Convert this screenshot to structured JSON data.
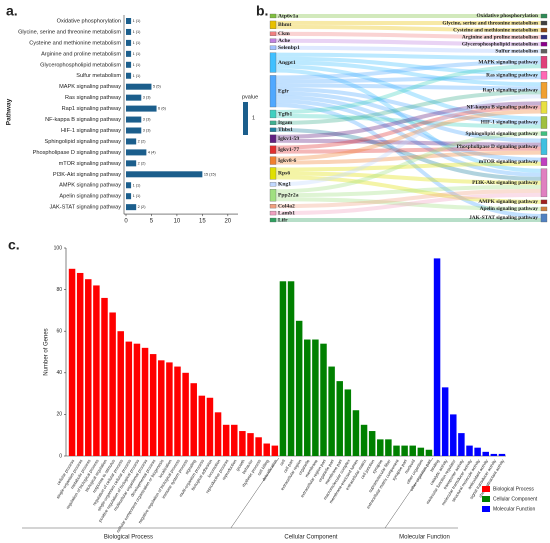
{
  "chart_data": [
    {
      "type": "barh",
      "label": "a.",
      "ylabel": "Pathway",
      "categories": [
        "Oxidative phosphorylation",
        "Glycine, serine and threonine metabolism",
        "Cysteine and methionine metabolism",
        "Arginine and proline metabolism",
        "Glycerophospholipid metabolism",
        "Sulfur metabolism",
        "MAPK signaling pathway",
        "Ras signaling pathway",
        "Rap1 signaling pathway",
        "NF-kappa B signaling pathway",
        "HIF-1 signaling pathway",
        "Sphingolipid signaling pathway",
        "Phospholipase D signaling pathway",
        "mTOR signaling pathway",
        "PI3K-Akt signaling pathway",
        "AMPK signaling pathway",
        "Apelin signaling pathway",
        "JAK-STAT signaling pathway"
      ],
      "values": [
        1,
        1,
        1,
        1,
        1,
        1,
        5,
        3,
        6,
        3,
        3,
        2,
        4,
        2,
        15,
        1,
        1,
        2
      ],
      "value_labels": [
        "1 (1)",
        "1 (1)",
        "1 (1)",
        "1 (1)",
        "1 (1)",
        "1 (1)",
        "5 (5)",
        "3 (3)",
        "6 (6)",
        "3 (3)",
        "3 (3)",
        "2 (2)",
        "4 (4)",
        "2 (2)",
        "15 (15)",
        "1 (1)",
        "1 (1)",
        "2 (2)"
      ],
      "color": "#1b5e8c",
      "xlim": [
        0,
        22
      ],
      "xticks": [
        0,
        5,
        10,
        15,
        20
      ],
      "colorbar": {
        "title": "pvalue",
        "ticks": [
          1
        ],
        "color": "#1b5e8c"
      }
    },
    {
      "type": "bar",
      "label": "c.",
      "ylabel": "Number of Genes",
      "ylim": [
        0,
        100
      ],
      "yticks": [
        0,
        20,
        40,
        60,
        80,
        100
      ],
      "legend": "lower right",
      "groups": [
        {
          "name": "Biological Process",
          "color": "#ff0000",
          "categories": [
            "cellular process",
            "single-organism process",
            "metabolic process",
            "regulation of biological process",
            "biological regulation",
            "response to stimulus",
            "regulation of cellular process",
            "single-organism cellular process",
            "positive regulation of biological process",
            "multicellular organismal process",
            "developmental process",
            "cellular component organization or biogenesis",
            "localization",
            "negative regulation of biological process",
            "immune system process",
            "signaling",
            "multi-organism process",
            "biological adhesion",
            "locomotion",
            "reproductive process",
            "reproduction",
            "growth",
            "behavior",
            "rhythmic process",
            "cell killing",
            "detoxification"
          ],
          "values": [
            90,
            88,
            85,
            82,
            76,
            69,
            60,
            55,
            54,
            52,
            49,
            46,
            45,
            43,
            40,
            35,
            29,
            28,
            21,
            15,
            15,
            12,
            11,
            9,
            6,
            5
          ]
        },
        {
          "name": "Cellular Component",
          "color": "#008000",
          "categories": [
            "cell",
            "cell part",
            "extracellular region",
            "organelle",
            "membrane",
            "extracellular region part",
            "organelle part",
            "membrane part",
            "macromolecular complex",
            "membrane-enclosed lumen",
            "extracellular matrix",
            "cell junction",
            "synapse",
            "supramolecular fiber",
            "extracellular matrix component",
            "synapse part",
            "nucleoid",
            "other organism",
            "other organism part"
          ],
          "values": [
            84,
            84,
            65,
            56,
            56,
            54,
            43,
            36,
            32,
            22,
            15,
            12,
            8,
            8,
            5,
            5,
            5,
            4,
            3
          ]
        },
        {
          "name": "Molecular Function",
          "color": "#0000ff",
          "categories": [
            "binding",
            "catalytic activity",
            "molecular function regulator",
            "transporter activity",
            "molecular transducer activity",
            "structural molecule activity",
            "antioxidant activity",
            "signal transducer activity",
            "chemoattractant activity"
          ],
          "values": [
            95,
            33,
            20,
            11,
            5,
            4,
            2,
            1,
            1
          ]
        }
      ]
    }
  ],
  "sankey": {
    "label": "b.",
    "genes": [
      {
        "name": "Atp6v1a",
        "color": "#7fbf3f",
        "pathways": [
          "Oxidative phosphorylation"
        ]
      },
      {
        "name": "Bhmt",
        "color": "#e8c000",
        "pathways": [
          "Glycine, serine and threonine metabolism",
          "Cysteine and methionine metabolism"
        ]
      },
      {
        "name": "Ckm",
        "color": "#f08080",
        "pathways": [
          "Arginine and proline metabolism"
        ]
      },
      {
        "name": "Ache",
        "color": "#c080e0",
        "pathways": [
          "Glycerophospholipid metabolism"
        ]
      },
      {
        "name": "Selenbp1",
        "color": "#a0c0ff",
        "pathways": [
          "Sulfur metabolism"
        ]
      },
      {
        "name": "Angpt1",
        "color": "#40c0ff",
        "pathways": [
          "MAPK signaling pathway",
          "Ras signaling pathway",
          "Rap1 signaling pathway",
          "HIF-1 signaling pathway",
          "PI3K-Akt signaling pathway"
        ]
      },
      {
        "name": "Egfr",
        "color": "#4fa8ff",
        "pathways": [
          "MAPK signaling pathway",
          "Ras signaling pathway",
          "Rap1 signaling pathway",
          "HIF-1 signaling pathway",
          "Phospholipase D signaling pathway",
          "mTOR signaling pathway",
          "PI3K-Akt signaling pathway",
          "JAK-STAT signaling pathway"
        ]
      },
      {
        "name": "Tgfb1",
        "color": "#40d0c0",
        "pathways": [
          "MAPK signaling pathway",
          "HIF-1 signaling pathway"
        ]
      },
      {
        "name": "Itgam",
        "color": "#40b090",
        "pathways": [
          "Rap1 signaling pathway"
        ]
      },
      {
        "name": "Thbs1",
        "color": "#2080a0",
        "pathways": [
          "PI3K-Akt signaling pathway"
        ]
      },
      {
        "name": "Igkv1-59",
        "color": "#602080",
        "pathways": [
          "NF-kappa B signaling pathway",
          "Phospholipase D signaling pathway"
        ]
      },
      {
        "name": "Igkv1-77",
        "color": "#e03030",
        "pathways": [
          "NF-kappa B signaling pathway",
          "Phospholipase D signaling pathway"
        ]
      },
      {
        "name": "Igkv8-6",
        "color": "#f08030",
        "pathways": [
          "NF-kappa B signaling pathway",
          "Phospholipase D signaling pathway"
        ]
      },
      {
        "name": "Rps6",
        "color": "#e0e000",
        "pathways": [
          "mTOR signaling pathway",
          "PI3K-Akt signaling pathway",
          "AMPK signaling pathway"
        ]
      },
      {
        "name": "Kng1",
        "color": "#c0d8ff",
        "pathways": [
          "Rap1 signaling pathway"
        ]
      },
      {
        "name": "Ppp2r2a",
        "color": "#a0e080",
        "pathways": [
          "Sphingolipid signaling pathway",
          "PI3K-Akt signaling pathway",
          "Apelin signaling pathway"
        ]
      },
      {
        "name": "Col4a2",
        "color": "#f0a080",
        "pathways": [
          "PI3K-Akt signaling pathway"
        ]
      },
      {
        "name": "Lamb1",
        "color": "#f0a0c0",
        "pathways": [
          "PI3K-Akt signaling pathway"
        ]
      },
      {
        "name": "Lifr",
        "color": "#30a060",
        "pathways": [
          "JAK-STAT signaling pathway"
        ]
      }
    ],
    "pathways": [
      {
        "name": "Oxidative phosphorylation",
        "color": "#2e8b57"
      },
      {
        "name": "Glycine, serine and threonine metabolism",
        "color": "#404040"
      },
      {
        "name": "Cysteine and methionine metabolism",
        "color": "#8b4513"
      },
      {
        "name": "Arginine and proline metabolism",
        "color": "#303080"
      },
      {
        "name": "Glycerophospholipid metabolism",
        "color": "#8b008b"
      },
      {
        "name": "Sulfur metabolism",
        "color": "#606060"
      },
      {
        "name": "MAPK signaling pathway",
        "color": "#e0407a"
      },
      {
        "name": "Ras signaling pathway",
        "color": "#ff69b4"
      },
      {
        "name": "Rap1 signaling pathway",
        "color": "#f0a030"
      },
      {
        "name": "NF-kappa B signaling pathway",
        "color": "#e8e040"
      },
      {
        "name": "HIF-1 signaling pathway",
        "color": "#a0c040"
      },
      {
        "name": "Sphingolipid signaling pathway",
        "color": "#40c080"
      },
      {
        "name": "Phospholipase D signaling pathway",
        "color": "#40c0e0"
      },
      {
        "name": "mTOR signaling pathway",
        "color": "#c040c0"
      },
      {
        "name": "PI3K-Akt signaling pathway",
        "color": "#e080c0"
      },
      {
        "name": "AMPK signaling pathway",
        "color": "#a02020"
      },
      {
        "name": "Apelin signaling pathway",
        "color": "#d08040"
      },
      {
        "name": "JAK-STAT signaling pathway",
        "color": "#5080c0"
      }
    ]
  }
}
